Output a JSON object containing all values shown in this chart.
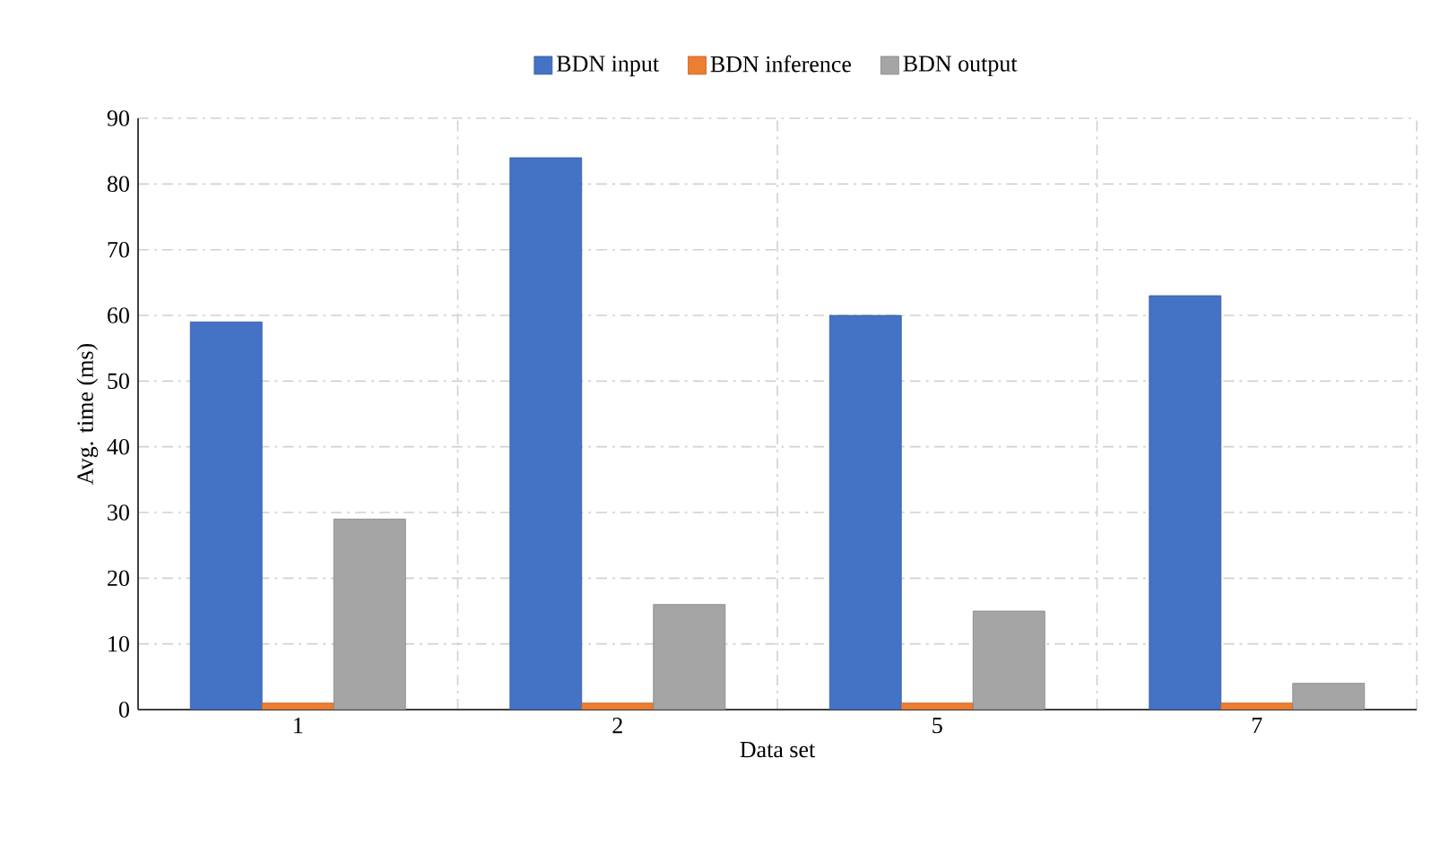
{
  "chart_data": {
    "type": "bar",
    "xlabel": "Data set",
    "ylabel": "Avg. time (ms)",
    "categories": [
      "1",
      "2",
      "5",
      "7"
    ],
    "series": [
      {
        "name": "BDN input",
        "color": "#4472c4",
        "values": [
          59,
          84,
          60,
          63
        ]
      },
      {
        "name": "BDN inference",
        "color": "#ed7d31",
        "values": [
          1,
          1,
          1,
          1
        ]
      },
      {
        "name": "BDN output",
        "color": "#a5a5a5",
        "values": [
          29,
          16,
          15,
          4
        ]
      }
    ],
    "ylim": [
      0,
      90
    ],
    "yticks": [
      0,
      10,
      20,
      30,
      40,
      50,
      60,
      70,
      80,
      90
    ],
    "grid": true,
    "legend": "top"
  }
}
